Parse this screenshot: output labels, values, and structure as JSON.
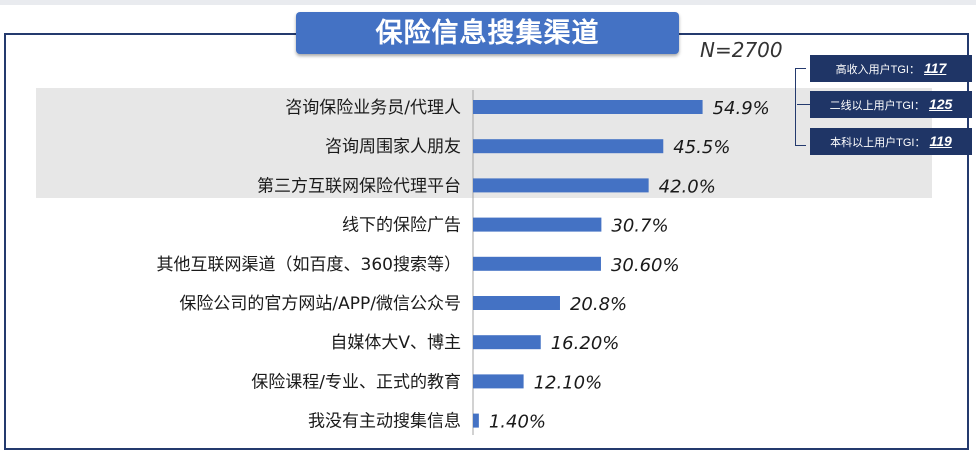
{
  "title": "保险信息搜集渠道",
  "sample_size": "N=2700",
  "tgi": [
    {
      "label": "高收入用户TGI：",
      "value": "117"
    },
    {
      "label": "二线以上用户TGI：",
      "value": "125"
    },
    {
      "label": "本科以上用户TGI：",
      "value": "119"
    }
  ],
  "chart_data": {
    "type": "bar",
    "orientation": "horizontal",
    "title": "保险信息搜集渠道",
    "categories": [
      "咨询保险业务员/代理人",
      "咨询周围家人朋友",
      "第三方互联网保险代理平台",
      "线下的保险广告",
      "其他互联网渠道（如百度、360搜索等）",
      "保险公司的官方网站/APP/微信公众号",
      "自媒体大V、博主",
      "保险课程/专业、正式的教育",
      "我没有主动搜集信息"
    ],
    "values": [
      54.9,
      45.5,
      42.0,
      30.7,
      30.6,
      20.8,
      16.2,
      12.1,
      1.4
    ],
    "value_labels": [
      "54.9%",
      "45.5%",
      "42.0%",
      "30.7%",
      "30.60%",
      "20.8%",
      "16.20%",
      "12.10%",
      "1.40%"
    ],
    "highlighted_top": 3,
    "bar_color": "#4472c4",
    "xlim": [
      0,
      100
    ],
    "grid": false,
    "legend": "none"
  }
}
